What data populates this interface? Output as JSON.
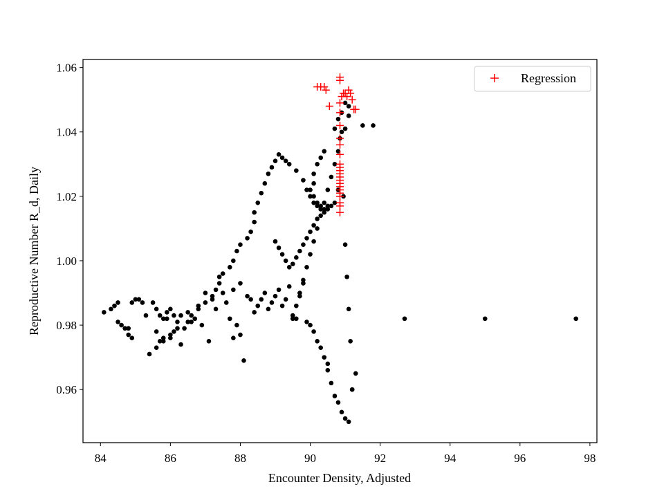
{
  "chart_data": {
    "type": "scatter",
    "title": "",
    "xlabel": "Encounter Density, Adjusted",
    "ylabel": "Reproductive Number R_d, Daily",
    "xlim": [
      83.5,
      98.2
    ],
    "ylim": [
      0.9435,
      1.0625
    ],
    "xticks": [
      84,
      86,
      88,
      90,
      92,
      94,
      96,
      98
    ],
    "yticks": [
      0.96,
      0.98,
      1.0,
      1.02,
      1.04,
      1.06
    ],
    "grid": false,
    "legend_position": "top-right",
    "colors": {
      "data": "#000000",
      "regression": "#ff0000"
    },
    "series": [
      {
        "name": "",
        "marker": "dot",
        "x": [
          84.1,
          84.3,
          84.4,
          84.5,
          84.5,
          84.6,
          84.7,
          84.8,
          84.8,
          84.9,
          84.9,
          85.0,
          85.1,
          85.2,
          85.3,
          85.5,
          85.6,
          85.6,
          85.7,
          85.7,
          85.8,
          85.8,
          85.9,
          85.9,
          86.0,
          86.0,
          86.1,
          86.1,
          86.2,
          86.3,
          86.3,
          86.4,
          86.5,
          86.6,
          86.7,
          86.8,
          86.9,
          87.0,
          87.1,
          87.2,
          87.3,
          87.4,
          87.5,
          87.6,
          87.7,
          87.8,
          87.8,
          87.9,
          88.0,
          88.0,
          88.1,
          88.2,
          88.3,
          88.4,
          88.5,
          88.6,
          88.7,
          88.8,
          88.9,
          89.0,
          89.1,
          89.2,
          89.3,
          89.4,
          89.5,
          89.6,
          89.7,
          89.8,
          89.9,
          90.0,
          90.1,
          90.2,
          90.3,
          90.4,
          90.5,
          90.5,
          90.6,
          90.7,
          90.8,
          90.9,
          91.0,
          91.1,
          91.2,
          91.3,
          91.5,
          91.8,
          92.7,
          95.0,
          97.6,
          90.4,
          90.3,
          90.2,
          90.1,
          90.1,
          90.0,
          90.1,
          90.2,
          90.3,
          90.4,
          90.5,
          90.7,
          90.8,
          91.0,
          91.1,
          91.1,
          91.0,
          90.9,
          90.8,
          90.7,
          90.6,
          90.5,
          90.4,
          90.3,
          90.2,
          90.1,
          90.0,
          89.9,
          89.8,
          89.6,
          89.4,
          89.3,
          89.2,
          89.1,
          89.0,
          88.9,
          88.8,
          88.7,
          88.6,
          88.5,
          88.4,
          88.4,
          88.3,
          88.2,
          88.0,
          87.9,
          87.8,
          87.7,
          87.5,
          87.4,
          87.3,
          87.2,
          87.0,
          86.8,
          86.6,
          86.5,
          86.2,
          86.0,
          85.8,
          85.6,
          85.4,
          89.5,
          89.6,
          89.7,
          89.8,
          89.9,
          90.0,
          90.1,
          90.2,
          90.3,
          90.4,
          90.5,
          90.6,
          90.7,
          90.8,
          90.85,
          90.9,
          90.95,
          91.0,
          91.05,
          91.1,
          91.15,
          91.2,
          89.0,
          89.1,
          89.2,
          89.3,
          89.4,
          89.5,
          89.6,
          89.7,
          89.8,
          89.9,
          90.0,
          90.1,
          90.2
        ],
        "y": [
          0.984,
          0.985,
          0.986,
          0.981,
          0.987,
          0.98,
          0.979,
          0.977,
          0.979,
          0.987,
          0.976,
          0.988,
          0.988,
          0.987,
          0.983,
          0.987,
          0.985,
          0.978,
          0.975,
          0.983,
          0.982,
          0.976,
          0.984,
          0.982,
          0.985,
          0.976,
          0.983,
          0.978,
          0.981,
          0.974,
          0.983,
          0.979,
          0.984,
          0.981,
          0.982,
          0.986,
          0.98,
          0.99,
          0.975,
          0.988,
          0.985,
          0.995,
          0.99,
          0.987,
          0.982,
          0.991,
          0.976,
          0.98,
          0.977,
          0.993,
          0.969,
          0.989,
          0.988,
          0.984,
          0.986,
          0.988,
          0.99,
          0.985,
          0.987,
          0.989,
          0.991,
          0.986,
          0.988,
          0.992,
          0.983,
          0.982,
          0.989,
          0.993,
          0.981,
          0.98,
          0.978,
          0.975,
          0.973,
          0.97,
          0.968,
          0.966,
          0.962,
          0.958,
          0.956,
          0.953,
          0.951,
          0.95,
          0.96,
          0.965,
          1.042,
          1.042,
          0.982,
          0.982,
          0.982,
          1.034,
          1.032,
          1.03,
          1.027,
          1.024,
          1.022,
          1.02,
          1.018,
          1.017,
          1.016,
          1.017,
          1.018,
          1.022,
          1.041,
          1.045,
          1.048,
          1.049,
          1.046,
          1.044,
          1.041,
          1.017,
          1.016,
          1.015,
          1.016,
          1.017,
          1.018,
          1.02,
          1.022,
          1.025,
          1.028,
          1.03,
          1.031,
          1.032,
          1.033,
          1.031,
          1.029,
          1.027,
          1.024,
          1.021,
          1.018,
          1.015,
          1.012,
          1.009,
          1.007,
          1.005,
          1.003,
          1.0,
          0.998,
          0.996,
          0.993,
          0.991,
          0.989,
          0.987,
          0.985,
          0.983,
          0.981,
          0.979,
          0.977,
          0.975,
          0.973,
          0.971,
          0.982,
          0.986,
          0.99,
          0.994,
          0.998,
          1.002,
          1.006,
          1.01,
          1.014,
          1.018,
          1.022,
          1.026,
          1.03,
          1.034,
          1.038,
          1.04,
          1.02,
          1.005,
          0.995,
          0.985,
          0.975,
          0.96,
          1.006,
          1.004,
          1.002,
          1.0,
          0.998,
          0.999,
          1.001,
          1.003,
          1.005,
          1.007,
          1.009,
          1.011,
          1.013
        ]
      },
      {
        "name": "Regression",
        "marker": "plus",
        "x": [
          90.2,
          90.3,
          90.4,
          90.45,
          90.55,
          90.85,
          90.85,
          90.9,
          90.95,
          91.0,
          91.05,
          91.1,
          91.15,
          91.2,
          91.25,
          91.3,
          90.85,
          90.85,
          90.85,
          90.85,
          90.85,
          90.85,
          90.85,
          90.85,
          90.85,
          90.85,
          90.85,
          90.85,
          90.85,
          90.85,
          90.85,
          90.85,
          90.85,
          90.85,
          90.85,
          90.85
        ],
        "y": [
          1.054,
          1.054,
          1.054,
          1.053,
          1.048,
          1.057,
          1.056,
          1.051,
          1.052,
          1.052,
          1.051,
          1.053,
          1.052,
          1.05,
          1.047,
          1.047,
          1.049,
          1.046,
          1.042,
          1.038,
          1.036,
          1.033,
          1.03,
          1.029,
          1.028,
          1.027,
          1.026,
          1.025,
          1.024,
          1.023,
          1.022,
          1.021,
          1.02,
          1.018,
          1.017,
          1.015
        ]
      }
    ],
    "legend": [
      "Regression"
    ]
  }
}
